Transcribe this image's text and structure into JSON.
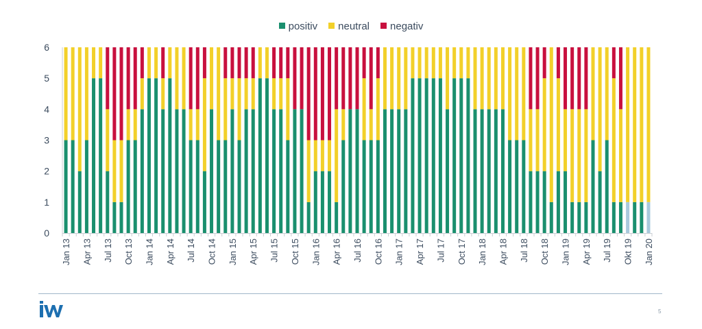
{
  "chart_data": {
    "type": "bar",
    "stacked": true,
    "title": "",
    "xlabel": "",
    "ylabel": "",
    "ylim": [
      0,
      6
    ],
    "yticks": [
      0,
      1,
      2,
      3,
      4,
      5,
      6
    ],
    "grid": false,
    "legend_position": "top-center",
    "categories": [
      "Jan 13",
      "Feb 13",
      "Mar 13",
      "Apr 13",
      "May 13",
      "Jun 13",
      "Jul 13",
      "Aug 13",
      "Sep 13",
      "Oct 13",
      "Nov 13",
      "Dec 13",
      "Jan 14",
      "Feb 14",
      "Mar 14",
      "Apr 14",
      "May 14",
      "Jun 14",
      "Jul 14",
      "Aug 14",
      "Sep 14",
      "Oct 14",
      "Nov 14",
      "Dec 14",
      "Jan 15",
      "Feb 15",
      "Mar 15",
      "Apr 15",
      "May 15",
      "Jun 15",
      "Jul 15",
      "Aug 15",
      "Sep 15",
      "Oct 15",
      "Nov 15",
      "Dec 15",
      "Jan 16",
      "Feb 16",
      "Mar 16",
      "Apr 16",
      "May 16",
      "Jun 16",
      "Jul 16",
      "Aug 16",
      "Sep 16",
      "Oct 16",
      "Nov 16",
      "Dec 16",
      "Jan 17",
      "Feb 17",
      "Mar 17",
      "Apr 17",
      "May 17",
      "Jun 17",
      "Jul 17",
      "Aug 17",
      "Sep 17",
      "Oct 17",
      "Nov 17",
      "Dec 17",
      "Jan 18",
      "Feb 18",
      "Mar 18",
      "Apr 18",
      "May 18",
      "Jun 18",
      "Jul 18",
      "Aug 18",
      "Sep 18",
      "Oct 18",
      "Nov 18",
      "Dec 18",
      "Jan 19",
      "Feb 19",
      "Mar 19",
      "Apr 19",
      "May 19",
      "Jun 19",
      "Jul 19",
      "Aug 19",
      "Sep 19",
      "Okt 19",
      "Nov 19",
      "Dec 19",
      "Jan 20"
    ],
    "xtick_labels": [
      "Jan 13",
      "Apr 13",
      "Jul 13",
      "Oct 13",
      "Jan 14",
      "Apr 14",
      "Jul 14",
      "Oct 14",
      "Jan 15",
      "Apr 15",
      "Jul 15",
      "Oct 15",
      "Jan 16",
      "Apr 16",
      "Jul 16",
      "Oct 16",
      "Jan 17",
      "Apr 17",
      "Jul 17",
      "Oct 17",
      "Jan 18",
      "Apr 18",
      "Jul 18",
      "Oct 18",
      "Jan 19",
      "Apr 19",
      "Jul 19",
      "Okt 19",
      "Jan 20"
    ],
    "highlighted_categories": [
      "Okt 19",
      "Jan 20"
    ],
    "series": [
      {
        "name": "positiv",
        "color": "#1a8f6e",
        "highlight_color": "#a9c9dd",
        "values": [
          3,
          3,
          2,
          3,
          5,
          5,
          2,
          1,
          1,
          3,
          3,
          4,
          5,
          5,
          4,
          5,
          4,
          4,
          3,
          3,
          2,
          4,
          3,
          3,
          4,
          3,
          4,
          4,
          5,
          5,
          4,
          4,
          3,
          4,
          4,
          1,
          2,
          2,
          2,
          1,
          3,
          4,
          4,
          3,
          3,
          3,
          4,
          4,
          4,
          4,
          5,
          5,
          5,
          5,
          5,
          4,
          5,
          5,
          5,
          4,
          4,
          4,
          4,
          4,
          3,
          3,
          3,
          2,
          2,
          2,
          1,
          2,
          2,
          1,
          1,
          1,
          3,
          2,
          3,
          1,
          1,
          1,
          1,
          1,
          1
        ]
      },
      {
        "name": "neutral",
        "color": "#f2d02a",
        "values": [
          3,
          3,
          4,
          3,
          1,
          1,
          2,
          2,
          2,
          1,
          1,
          1,
          1,
          1,
          1,
          1,
          2,
          2,
          1,
          1,
          3,
          2,
          3,
          2,
          1,
          2,
          1,
          1,
          1,
          1,
          1,
          1,
          2,
          0,
          0,
          2,
          1,
          1,
          1,
          3,
          1,
          0,
          0,
          2,
          1,
          2,
          2,
          2,
          2,
          2,
          1,
          1,
          1,
          1,
          1,
          2,
          1,
          1,
          1,
          2,
          2,
          2,
          2,
          2,
          3,
          3,
          3,
          2,
          2,
          3,
          5,
          3,
          2,
          3,
          3,
          3,
          3,
          4,
          3,
          4,
          3,
          5,
          5,
          5,
          5
        ]
      },
      {
        "name": "negativ",
        "color": "#c8103e",
        "values": [
          0,
          0,
          0,
          0,
          0,
          0,
          2,
          3,
          3,
          2,
          2,
          1,
          0,
          0,
          1,
          0,
          0,
          0,
          2,
          2,
          1,
          0,
          0,
          1,
          1,
          1,
          1,
          1,
          0,
          0,
          1,
          1,
          1,
          2,
          2,
          3,
          3,
          3,
          3,
          2,
          2,
          2,
          2,
          1,
          2,
          1,
          0,
          0,
          0,
          0,
          0,
          0,
          0,
          0,
          0,
          0,
          0,
          0,
          0,
          0,
          0,
          0,
          0,
          0,
          0,
          0,
          0,
          2,
          2,
          1,
          0,
          1,
          2,
          2,
          2,
          2,
          0,
          0,
          0,
          1,
          2,
          0,
          0,
          0,
          0
        ]
      }
    ]
  },
  "footer": {
    "logo_text": "iW",
    "page_number": "5"
  }
}
